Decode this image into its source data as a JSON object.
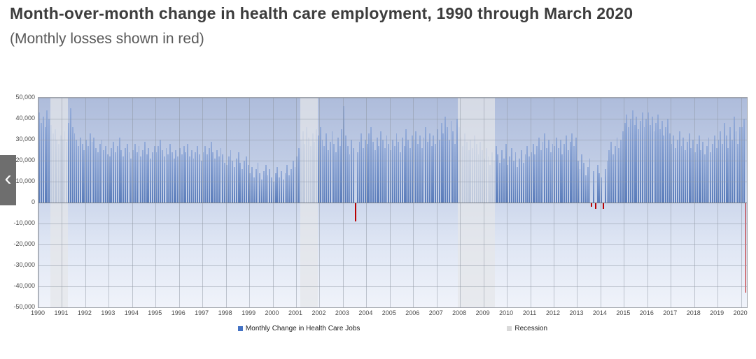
{
  "page": {
    "title": "Month-over-month change in health care employment, 1990 through March 2020",
    "subtitle": "(Monthly losses shown in red)"
  },
  "carousel": {
    "prev_label": "‹"
  },
  "chart_data": {
    "type": "bar",
    "title": "Month-over-month change in health care employment, 1990 through March 2020",
    "subtitle": "(Monthly losses shown in red)",
    "xlabel": "",
    "ylabel": "",
    "ylim": [
      -50000,
      50000
    ],
    "grid": "on",
    "legend_position": "bottom-center",
    "y_ticks": [
      "50,000",
      "40,000",
      "30,000",
      "20,000",
      "10,000",
      "0",
      "-10,000",
      "-20,000",
      "-30,000",
      "-40,000",
      "-50,000"
    ],
    "x_tick_labels": [
      "1990",
      "1991",
      "1992",
      "1993",
      "1994",
      "1995",
      "1996",
      "1997",
      "1998",
      "1999",
      "2000",
      "2001",
      "2002",
      "2003",
      "2004",
      "2005",
      "2006",
      "2007",
      "2008",
      "2009",
      "2010",
      "2011",
      "2012",
      "2013",
      "2014",
      "2015",
      "2016",
      "2017",
      "2018",
      "2019",
      "2020"
    ],
    "x_start": "1990-01",
    "x_end": "2020-03",
    "values_unit": "jobs per month (values stored in thousands, estimated from gridlines)",
    "bar_color": "#6a8cc8",
    "loss_color": "#b90000",
    "recession_color": "#dcdcdc",
    "recessions": [
      {
        "start": "1990-07",
        "end": "1991-03"
      },
      {
        "start": "2001-03",
        "end": "2001-11"
      },
      {
        "start": "2007-12",
        "end": "2009-06"
      }
    ],
    "legend": [
      {
        "label": "Monthly Change in Health Care Jobs",
        "color": "#4472c4"
      },
      {
        "label": "Recession",
        "color": "#d9d9d9"
      }
    ],
    "series": [
      {
        "name": "Monthly Change in Health Care Jobs",
        "values_by_year": {
          "1990": [
            43,
            38,
            41,
            36,
            44,
            40,
            37,
            33,
            35,
            30,
            28,
            32
          ],
          "1991": [
            30,
            34,
            29,
            38,
            45,
            36,
            33,
            30,
            27,
            31,
            28,
            25
          ],
          "1992": [
            30,
            27,
            33,
            29,
            31,
            26,
            24,
            28,
            30,
            25,
            27,
            23
          ],
          "1993": [
            22,
            26,
            29,
            24,
            27,
            31,
            25,
            22,
            26,
            28,
            24,
            21
          ],
          "1994": [
            25,
            28,
            24,
            27,
            22,
            25,
            29,
            23,
            26,
            21,
            24,
            27
          ],
          "1995": [
            24,
            27,
            30,
            25,
            22,
            26,
            23,
            28,
            24,
            21,
            25,
            22
          ],
          "1996": [
            26,
            23,
            27,
            24,
            28,
            22,
            25,
            21,
            24,
            27,
            23,
            20
          ],
          "1997": [
            24,
            27,
            23,
            26,
            29,
            24,
            21,
            25,
            22,
            26,
            23,
            19
          ],
          "1998": [
            18,
            22,
            25,
            20,
            17,
            21,
            24,
            19,
            16,
            20,
            22,
            18
          ],
          "1999": [
            14,
            17,
            12,
            16,
            19,
            14,
            11,
            15,
            18,
            13,
            16,
            12
          ],
          "2000": [
            10,
            14,
            17,
            12,
            15,
            11,
            14,
            18,
            13,
            16,
            20,
            17
          ],
          "2001": [
            22,
            26,
            30,
            34,
            28,
            36,
            31,
            27,
            33,
            29,
            35,
            32
          ],
          "2002": [
            36,
            30,
            27,
            33,
            25,
            29,
            34,
            28,
            24,
            31,
            27,
            35
          ],
          "2003": [
            46,
            32,
            27,
            23,
            30,
            26,
            -9,
            24,
            29,
            33,
            26,
            30
          ],
          "2004": [
            28,
            33,
            36,
            29,
            25,
            31,
            27,
            34,
            30,
            26,
            32,
            28
          ],
          "2005": [
            25,
            30,
            27,
            33,
            29,
            24,
            31,
            27,
            35,
            30,
            26,
            32
          ],
          "2006": [
            30,
            34,
            28,
            32,
            26,
            31,
            36,
            29,
            33,
            27,
            32,
            28
          ],
          "2007": [
            35,
            30,
            38,
            33,
            41,
            36,
            30,
            39,
            34,
            28,
            40,
            36
          ],
          "2008": [
            31,
            27,
            33,
            29,
            25,
            30,
            26,
            32,
            28,
            23,
            29,
            25
          ],
          "2009": [
            21,
            26,
            22,
            18,
            24,
            20,
            27,
            23,
            19,
            25,
            21,
            28
          ],
          "2010": [
            18,
            22,
            26,
            20,
            24,
            17,
            21,
            25,
            19,
            23,
            27,
            22
          ],
          "2011": [
            24,
            28,
            23,
            27,
            31,
            25,
            29,
            33,
            26,
            30,
            24,
            28
          ],
          "2012": [
            27,
            31,
            26,
            30,
            23,
            28,
            32,
            25,
            29,
            33,
            27,
            31
          ],
          "2013": [
            20,
            16,
            23,
            19,
            13,
            17,
            21,
            -2,
            15,
            -3,
            18,
            14
          ],
          "2014": [
            12,
            -3,
            16,
            20,
            25,
            29,
            23,
            27,
            31,
            26,
            30,
            34
          ],
          "2015": [
            38,
            42,
            36,
            40,
            44,
            37,
            41,
            35,
            39,
            43,
            36,
            40
          ],
          "2016": [
            43,
            37,
            41,
            34,
            38,
            42,
            35,
            39,
            32,
            36,
            40,
            33
          ],
          "2017": [
            28,
            32,
            26,
            30,
            34,
            27,
            31,
            25,
            29,
            33,
            26,
            30
          ],
          "2018": [
            24,
            28,
            32,
            25,
            29,
            23,
            27,
            31,
            24,
            28,
            32,
            26
          ],
          "2019": [
            30,
            34,
            28,
            38,
            32,
            26,
            36,
            30,
            41,
            34,
            28,
            36
          ],
          "2020": [
            36,
            40,
            -43
          ]
        }
      }
    ]
  }
}
